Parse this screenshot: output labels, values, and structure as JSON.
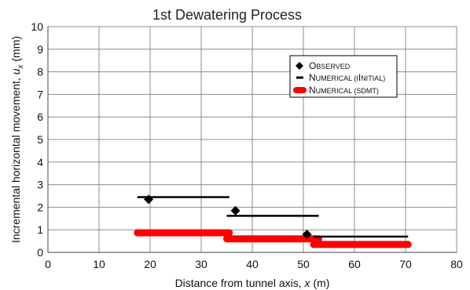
{
  "chart_data": {
    "type": "line",
    "title": "1st Dewatering Process",
    "xlabel_parts": {
      "pre": "Distance from tunnel axis, ",
      "var": "x",
      "post": " (m)"
    },
    "ylabel_parts": {
      "pre": "Incremental horizontal movement, ",
      "var": "u",
      "sub": "x",
      "post": " (mm)"
    },
    "xlim": [
      0,
      80
    ],
    "ylim": [
      0,
      10
    ],
    "xticks": [
      0,
      10,
      20,
      30,
      40,
      50,
      60,
      70,
      80
    ],
    "yticks": [
      0,
      1,
      2,
      3,
      4,
      5,
      6,
      7,
      8,
      9,
      10
    ],
    "grid": true,
    "legend_placement": "upper-right",
    "legend": [
      {
        "key": "observed",
        "label_initial": "O",
        "label_rest": "BSERVED"
      },
      {
        "key": "initial",
        "label_initial": "N",
        "label_rest": "UMERICAL (I",
        "label_initial2": "I",
        "label_rest2": "NITIAL)"
      },
      {
        "key": "sdmt",
        "label_initial": "N",
        "label_rest": "UMERICAL (SDMT)"
      }
    ],
    "series": [
      {
        "key": "observed",
        "name": "Observed",
        "marker": "diamond",
        "color": "#000000",
        "points": [
          [
            19.7,
            2.35
          ],
          [
            36.7,
            1.85
          ],
          [
            50.7,
            0.8
          ]
        ]
      },
      {
        "key": "initial",
        "name": "Numerical (Initial)",
        "marker": "segment",
        "color": "#000000",
        "segments": [
          [
            17.5,
            35.5,
            2.45
          ],
          [
            35.0,
            53.0,
            1.62
          ],
          [
            52.0,
            70.5,
            0.7
          ]
        ]
      },
      {
        "key": "sdmt",
        "name": "Numerical (SDMT)",
        "marker": "thick-segment",
        "color": "#ff0000",
        "segments": [
          [
            17.5,
            35.5,
            0.87
          ],
          [
            35.0,
            53.0,
            0.6
          ],
          [
            52.0,
            70.5,
            0.35
          ]
        ]
      }
    ]
  }
}
